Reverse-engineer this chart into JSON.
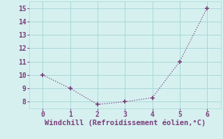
{
  "x": [
    0,
    1,
    2,
    3,
    4,
    5,
    6
  ],
  "y": [
    10.0,
    9.0,
    7.8,
    8.0,
    8.3,
    11.0,
    15.0
  ],
  "line_color": "#7b3f7b",
  "marker": "+",
  "marker_size": 4,
  "marker_linewidth": 1.2,
  "linewidth": 0.9,
  "background_color": "#d6f0f0",
  "grid_color": "#a8d8d8",
  "xlabel": "Windchill (Refroidissement éolien,°C)",
  "xlabel_color": "#7b3f7b",
  "xlabel_fontsize": 7.5,
  "tick_color": "#7b3f7b",
  "tick_fontsize": 7,
  "ylim": [
    7.5,
    15.5
  ],
  "xlim": [
    -0.5,
    6.5
  ],
  "yticks": [
    8,
    9,
    10,
    11,
    12,
    13,
    14,
    15
  ],
  "xticks": [
    0,
    1,
    2,
    3,
    4,
    5,
    6
  ]
}
